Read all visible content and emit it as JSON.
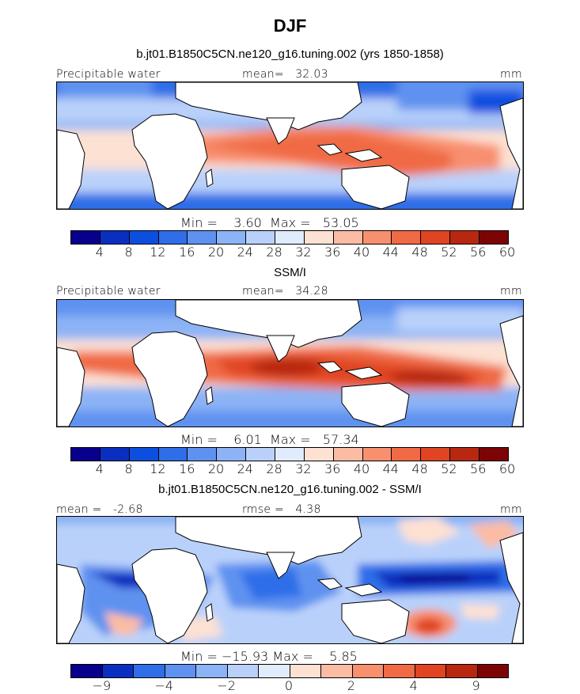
{
  "title": "DJF",
  "panel1": {
    "subtitle": "b.jt01.B1850C5CN.ne120_g16.tuning.002 (yrs 1850-1858)",
    "field_label": "Precipitable water",
    "mean_label": "mean=",
    "mean_value": "32.03",
    "units": "mm",
    "min_label": "Min =",
    "min_value": "3.60",
    "max_label": "Max =",
    "max_value": "53.05",
    "ticks": [
      "4",
      "8",
      "12",
      "16",
      "20",
      "24",
      "28",
      "32",
      "36",
      "40",
      "44",
      "48",
      "52",
      "56",
      "60"
    ]
  },
  "panel2": {
    "subtitle": "SSM/I",
    "field_label": "Precipitable water",
    "mean_label": "mean=",
    "mean_value": "34.28",
    "units": "mm",
    "min_label": "Min =",
    "min_value": "6.01",
    "max_label": "Max =",
    "max_value": "57.34",
    "ticks": [
      "4",
      "8",
      "12",
      "16",
      "20",
      "24",
      "28",
      "32",
      "36",
      "40",
      "44",
      "48",
      "52",
      "56",
      "60"
    ]
  },
  "panel3": {
    "subtitle": "b.jt01.B1850C5CN.ne120_g16.tuning.002 - SSM/I",
    "mean_label": "mean =",
    "mean_value": "-2.68",
    "rmse_label": "rmse =",
    "rmse_value": "4.38",
    "units": "mm",
    "min_label": "Min =",
    "min_value": "−15.93",
    "max_label": "Max =",
    "max_value": "5.85",
    "ticks": [
      "−9",
      "−4",
      "−2",
      "0",
      "2",
      "4",
      "9"
    ]
  },
  "colors": {
    "abs_scale": [
      "#08008c",
      "#0a2fc0",
      "#0c4fe0",
      "#2f6ee8",
      "#5f92f0",
      "#8cb3f5",
      "#b9d1fa",
      "#e0ecfc",
      "#fde1d3",
      "#fbbca3",
      "#f88f6e",
      "#f06a45",
      "#e04423",
      "#b82810",
      "#7c0404"
    ],
    "diff_scale": [
      "#08008c",
      "#0a2fc0",
      "#2f6ee8",
      "#5f92f0",
      "#8cb3f5",
      "#b9d1fa",
      "#e0ecfc",
      "#fde1d3",
      "#fbbca3",
      "#f88f6e",
      "#f06a45",
      "#e04423",
      "#b82810",
      "#7c0404"
    ]
  }
}
